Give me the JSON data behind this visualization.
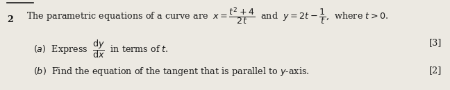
{
  "bg_color": "#ece9e2",
  "text_color": "#1a1a1a",
  "question_number": "2",
  "line1": "The parametric equations of a curve are  $x = \\dfrac{t^2+4}{2t}$  and  $y = 2t - \\dfrac{1}{t}$,  where $t > 0$.",
  "part_a": "$(a)$  Express  $\\dfrac{\\mathrm{d}y}{\\mathrm{d}x}$  in terms of $t$.",
  "part_a_marks": "[3]",
  "part_b": "$(b)$  Find the equation of the tangent that is parallel to $y$-axis.",
  "part_b_marks": "[2]",
  "figsize": [
    6.48,
    1.3
  ],
  "dpi": 100,
  "fs": 9.2
}
